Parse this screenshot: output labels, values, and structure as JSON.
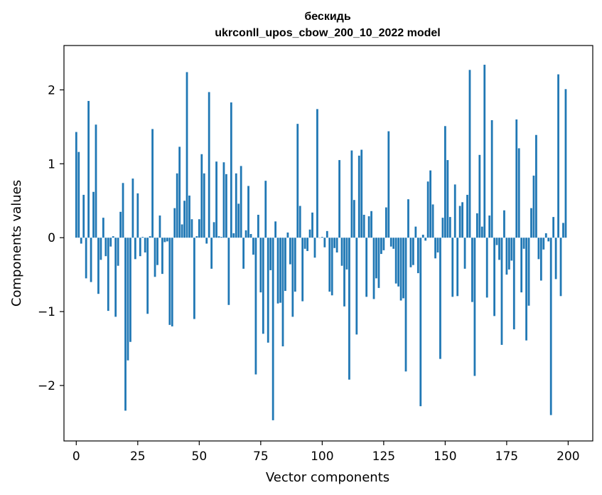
{
  "chart_data": {
    "type": "bar",
    "title": "бескидь",
    "subtitle": "ukrconll_upos_cbow_200_10_2022 model",
    "xlabel": "Vector components",
    "ylabel": "Components values",
    "xlim": [
      -5,
      210
    ],
    "ylim": [
      -2.75,
      2.6
    ],
    "xticks": [
      0,
      25,
      50,
      75,
      100,
      125,
      150,
      175,
      200
    ],
    "yticks": [
      -2,
      -1,
      0,
      1,
      2
    ],
    "ytick_labels": [
      "−2",
      "−1",
      "0",
      "1",
      "2"
    ],
    "grid": false,
    "color": "#1f77b4",
    "x": [
      0,
      1,
      2,
      3,
      4,
      5,
      6,
      7,
      8,
      9,
      10,
      11,
      12,
      13,
      14,
      15,
      16,
      17,
      18,
      19,
      20,
      21,
      22,
      23,
      24,
      25,
      26,
      27,
      28,
      29,
      30,
      31,
      32,
      33,
      34,
      35,
      36,
      37,
      38,
      39,
      40,
      41,
      42,
      43,
      44,
      45,
      46,
      47,
      48,
      49,
      50,
      51,
      52,
      53,
      54,
      55,
      56,
      57,
      58,
      59,
      60,
      61,
      62,
      63,
      64,
      65,
      66,
      67,
      68,
      69,
      70,
      71,
      72,
      73,
      74,
      75,
      76,
      77,
      78,
      79,
      80,
      81,
      82,
      83,
      84,
      85,
      86,
      87,
      88,
      89,
      90,
      91,
      92,
      93,
      94,
      95,
      96,
      97,
      98,
      99,
      100,
      101,
      102,
      103,
      104,
      105,
      106,
      107,
      108,
      109,
      110,
      111,
      112,
      113,
      114,
      115,
      116,
      117,
      118,
      119,
      120,
      121,
      122,
      123,
      124,
      125,
      126,
      127,
      128,
      129,
      130,
      131,
      132,
      133,
      134,
      135,
      136,
      137,
      138,
      139,
      140,
      141,
      142,
      143,
      144,
      145,
      146,
      147,
      148,
      149,
      150,
      151,
      152,
      153,
      154,
      155,
      156,
      157,
      158,
      159,
      160,
      161,
      162,
      163,
      164,
      165,
      166,
      167,
      168,
      169,
      170,
      171,
      172,
      173,
      174,
      175,
      176,
      177,
      178,
      179,
      180,
      181,
      182,
      183,
      184,
      185,
      186,
      187,
      188,
      189,
      190,
      191,
      192,
      193,
      194,
      195,
      196,
      197,
      198,
      199
    ],
    "values": [
      1.43,
      1.16,
      -0.08,
      0.58,
      -0.55,
      1.85,
      -0.6,
      0.62,
      1.53,
      -0.76,
      -0.3,
      0.27,
      -0.25,
      -0.99,
      -0.12,
      0.02,
      -1.07,
      -0.38,
      0.35,
      0.74,
      -2.34,
      -1.66,
      -1.41,
      0.8,
      -0.29,
      0.6,
      -0.25,
      0.01,
      -0.2,
      -1.03,
      0.02,
      1.47,
      -0.53,
      -0.37,
      0.3,
      -0.49,
      -0.06,
      -0.05,
      -1.18,
      -1.2,
      0.4,
      0.87,
      1.23,
      0.18,
      0.5,
      2.24,
      0.57,
      0.25,
      -1.1,
      0.02,
      0.25,
      1.13,
      0.87,
      -0.08,
      1.97,
      -0.42,
      0.21,
      1.03,
      0.02,
      0.01,
      1.02,
      0.86,
      -0.91,
      1.83,
      0.06,
      0.87,
      0.46,
      0.97,
      -0.42,
      0.1,
      0.7,
      0.05,
      -0.23,
      -1.85,
      0.31,
      -0.74,
      -1.3,
      0.77,
      -1.42,
      -0.44,
      -2.47,
      0.22,
      -0.89,
      -0.88,
      -1.47,
      -0.72,
      0.07,
      -0.36,
      -1.07,
      -0.73,
      1.54,
      0.43,
      -0.86,
      -0.15,
      -0.18,
      0.11,
      0.34,
      -0.27,
      1.74,
      0.0,
      0.01,
      -0.13,
      0.09,
      -0.73,
      -0.78,
      -0.14,
      -0.2,
      1.05,
      -0.38,
      -0.93,
      -0.43,
      -1.92,
      1.18,
      0.51,
      -1.31,
      1.11,
      1.19,
      0.31,
      -0.8,
      0.29,
      0.36,
      -0.83,
      -0.55,
      -0.68,
      -0.22,
      -0.17,
      0.41,
      1.44,
      -0.12,
      -0.15,
      -0.62,
      -0.66,
      -0.85,
      -0.82,
      -1.81,
      0.52,
      -0.4,
      -0.37,
      0.15,
      -0.48,
      -2.28,
      0.04,
      -0.04,
      0.76,
      0.91,
      0.45,
      -0.28,
      -0.2,
      -1.64,
      0.27,
      1.51,
      1.05,
      0.28,
      -0.8,
      0.72,
      -0.79,
      0.43,
      0.48,
      -0.42,
      0.58,
      2.27,
      -0.87,
      -1.87,
      0.33,
      1.12,
      0.15,
      2.34,
      -0.81,
      0.3,
      1.59,
      -1.06,
      -0.1,
      -0.3,
      -1.45,
      0.37,
      -0.5,
      -0.43,
      -0.31,
      -1.24,
      1.6,
      1.21,
      -0.74,
      -0.15,
      -1.39,
      -0.92,
      0.4,
      0.84,
      1.39,
      -0.29,
      -0.58,
      -0.16,
      0.06,
      -0.05,
      -2.4,
      0.28,
      -0.56,
      2.21,
      -0.79,
      0.2,
      2.01
    ]
  }
}
